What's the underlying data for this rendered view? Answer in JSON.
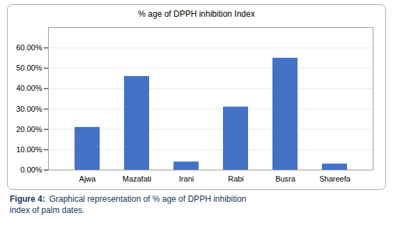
{
  "chart_data": {
    "type": "bar",
    "title": "% age of DPPH inhibition Index",
    "categories": [
      "Ajwa",
      "Mazafati",
      "Irani",
      "Rabi",
      "Busra",
      "Shareefa"
    ],
    "values": [
      0.21,
      0.46,
      0.04,
      0.31,
      0.55,
      0.03
    ],
    "color": "#4472C4",
    "ylim": [
      0,
      0.7
    ],
    "yticks": [
      {
        "value": 0.0,
        "label": "0.00%"
      },
      {
        "value": 0.1,
        "label": "10.00%"
      },
      {
        "value": 0.2,
        "label": "20.00%"
      },
      {
        "value": 0.3,
        "label": "30.00%"
      },
      {
        "value": 0.4,
        "label": "40.00%"
      },
      {
        "value": 0.5,
        "label": "50.00%"
      },
      {
        "value": 0.6,
        "label": "60.00%"
      }
    ],
    "grid": true,
    "caption_label": "Figure 4:",
    "caption": "Graphical representation of % age of DPPH inhibition\nindex of palm dates."
  }
}
